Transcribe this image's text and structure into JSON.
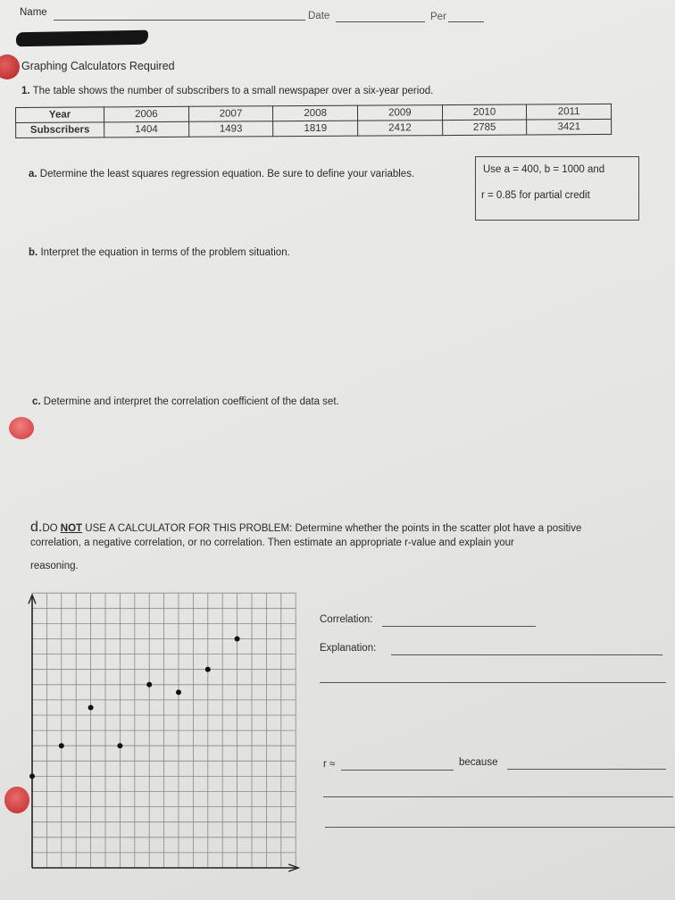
{
  "header": {
    "name_label": "Name",
    "date_label": "Date",
    "per_label": "Per"
  },
  "subtitle": "Graphing Calculators Required",
  "question1": {
    "number": "1.",
    "prompt": "The table shows the number of subscribers to a small newspaper over a six-year period.",
    "table": {
      "row_headers": [
        "Year",
        "Subscribers"
      ],
      "years": [
        "2006",
        "2007",
        "2008",
        "2009",
        "2010",
        "2011"
      ],
      "subscribers": [
        "1404",
        "1493",
        "1819",
        "2412",
        "2785",
        "3421"
      ]
    },
    "part_a": {
      "label": "a.",
      "text": "Determine the least squares regression equation.  Be sure to define your variables."
    },
    "hint": {
      "line1": "Use a = 400, b = 1000 and",
      "line2": "r = 0.85 for partial credit"
    },
    "part_b": {
      "label": "b.",
      "text": "Interpret the equation in terms of the problem situation."
    },
    "part_c": {
      "label": "c.",
      "text": "Determine and interpret the correlation coefficient of the data set."
    },
    "part_d": {
      "label": "d.",
      "emph_pre": "DO ",
      "emph_not": "NOT",
      "line1_rest": " USE A CALCULATOR FOR THIS PROBLEM: Determine whether the points in the scatter plot have a positive",
      "line2": "correlation, a negative correlation, or no correlation. Then estimate an appropriate r-value and explain your",
      "line3": "reasoning."
    },
    "answer_fields": {
      "correlation_label": "Correlation:",
      "explanation_label": "Explanation:",
      "r_label": "r ≈",
      "because_label": "because"
    }
  },
  "scatter_plot": {
    "grid": {
      "columns": 18,
      "rows": 18
    },
    "points": [
      [
        0,
        6
      ],
      [
        2,
        8
      ],
      [
        4,
        10.5
      ],
      [
        6,
        8
      ],
      [
        8,
        12
      ],
      [
        10,
        11.5
      ],
      [
        12,
        13
      ],
      [
        14,
        15
      ]
    ]
  },
  "colors": {
    "sticker_red": "#c02828",
    "paper": "#e6e6e4",
    "ink": "#2a2a2a"
  }
}
